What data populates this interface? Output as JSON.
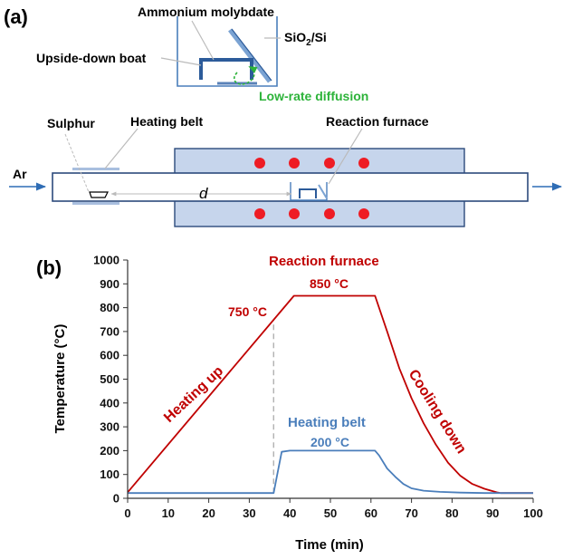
{
  "panel_a": {
    "label": "(a)",
    "ammonium_label": "Ammonium molybdate",
    "substrate_label_main": "SiO",
    "substrate_label_sub": "2",
    "substrate_label_end": "/Si",
    "boat_label": "Upside-down boat",
    "diffusion_label": "Low-rate diffusion",
    "sulphur_label": "Sulphur",
    "heating_belt_label": "Heating belt",
    "reaction_furnace_label": "Reaction furnace",
    "gas_label": "Ar",
    "distance_label": "d",
    "colors": {
      "furnace_fill": "#c6d5ec",
      "heater_dot": "#ee1c24",
      "tube_stroke": "#2c4a7c",
      "diffusion": "#2db33a"
    }
  },
  "panel_b": {
    "label": "(b)",
    "reaction_furnace_label": "Reaction furnace",
    "heating_belt_label": "Heating belt",
    "t850_label": "850 °C",
    "t750_label": "750 °C",
    "t200_label": "200 °C",
    "heating_up_label": "Heating up",
    "cooling_down_label": "Cooling down"
  },
  "chart_data": {
    "type": "line",
    "xlabel": "Time (min)",
    "ylabel": "Temperature (°C)",
    "xlim": [
      0,
      100
    ],
    "ylim": [
      0,
      1000
    ],
    "x_ticks": [
      0,
      10,
      20,
      30,
      40,
      50,
      60,
      70,
      80,
      90,
      100
    ],
    "y_ticks": [
      0,
      100,
      200,
      300,
      400,
      500,
      600,
      700,
      800,
      900,
      1000
    ],
    "grid": false,
    "series": [
      {
        "name": "Reaction furnace",
        "color": "#c00000",
        "x": [
          0,
          41,
          61,
          64,
          67,
          70,
          73,
          76,
          79,
          82,
          85,
          88,
          91,
          92,
          100
        ],
        "y": [
          25,
          850,
          850,
          700,
          545,
          420,
          315,
          225,
          150,
          95,
          60,
          40,
          25,
          22,
          22
        ]
      },
      {
        "name": "Heating belt",
        "color": "#4a7ebb",
        "x": [
          0,
          36,
          37,
          38,
          40,
          61,
          62,
          64,
          66,
          68,
          70,
          73,
          77,
          82,
          88,
          100
        ],
        "y": [
          22,
          22,
          110,
          195,
          200,
          200,
          180,
          125,
          90,
          60,
          42,
          32,
          27,
          24,
          22,
          22
        ]
      }
    ],
    "annotations": [
      {
        "type": "vline",
        "x": 36,
        "y_from": 22,
        "y_to": 750,
        "style": "dashed",
        "color": "#b0b0b0"
      }
    ]
  }
}
